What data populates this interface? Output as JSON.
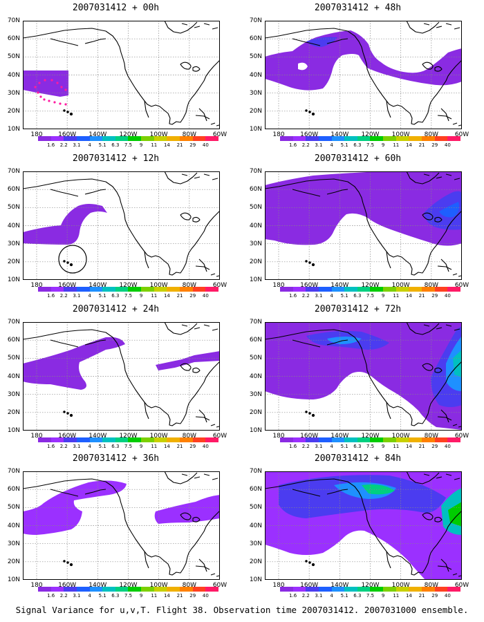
{
  "figure": {
    "caption": "Signal Variance for u,v,T. Flight 38. Observation time 2007031412. 2007031000 ensemble."
  },
  "axes": {
    "x_ticks": [
      "180",
      "160W",
      "140W",
      "120W",
      "100W",
      "80W",
      "60W"
    ],
    "y_ticks": [
      "70N",
      "60N",
      "50N",
      "40N",
      "30N",
      "20N",
      "10N"
    ]
  },
  "colorbar": {
    "labels": [
      "1.6",
      "2.2",
      "3.1",
      "4",
      "5.1",
      "6.3",
      "7.5",
      "9",
      "11",
      "14",
      "21",
      "29",
      "40"
    ],
    "colors": [
      "#8a2be2",
      "#9b30ff",
      "#4b3cf0",
      "#1e5fff",
      "#1e90ff",
      "#00c0c0",
      "#00d080",
      "#00cc00",
      "#7cd000",
      "#c8d000",
      "#f0b000",
      "#ff8000",
      "#ff4020",
      "#ff1a66"
    ]
  },
  "panels": [
    {
      "title": "2007031412 + 00h",
      "lead_hours": 0,
      "max_signal_level": "1.6",
      "marker": "flight track (magenta dots)"
    },
    {
      "title": "2007031412 + 12h",
      "lead_hours": 12,
      "max_signal_level": "1.6",
      "marker": "circle near 160W 20N"
    },
    {
      "title": "2007031412 + 24h",
      "lead_hours": 24,
      "max_signal_level": "1.6"
    },
    {
      "title": "2007031412 + 36h",
      "lead_hours": 36,
      "max_signal_level": "2.2"
    },
    {
      "title": "2007031412 + 48h",
      "lead_hours": 48,
      "max_signal_level": "3.1"
    },
    {
      "title": "2007031412 + 60h",
      "lead_hours": 60,
      "max_signal_level": "4"
    },
    {
      "title": "2007031412 + 72h",
      "lead_hours": 72,
      "max_signal_level": "6.3"
    },
    {
      "title": "2007031412 + 84h",
      "lead_hours": 84,
      "max_signal_level": "7.5"
    }
  ]
}
